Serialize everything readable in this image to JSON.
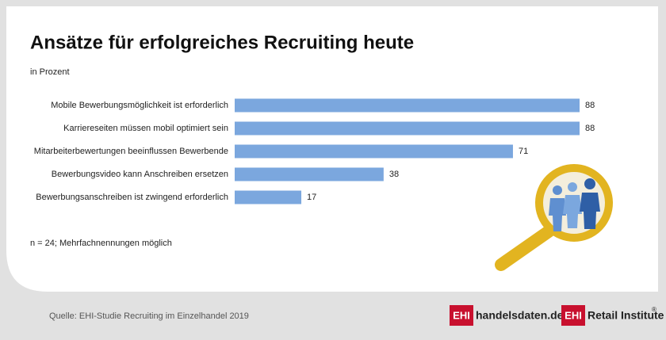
{
  "chart_data": {
    "type": "bar",
    "orientation": "horizontal",
    "title": "Ansätze für erfolgreiches Recruiting heute",
    "subtitle": "in Prozent",
    "categories": [
      "Mobile Bewerbungsmöglichkeit ist erforderlich",
      "Karriereseiten müssen mobil optimiert sein",
      "Mitarbeiterbewertungen beeinflussen Bewerbende",
      "Bewerbungsvideo kann Anschreiben ersetzen",
      "Bewerbungsanschreiben ist zwingend erforderlich"
    ],
    "values": [
      88,
      88,
      71,
      38,
      17
    ],
    "color": "#7ba7de",
    "note": "n = 24; Mehrfachnennungen möglich"
  },
  "footer": {
    "source": "Quelle: EHI-Studie Recruiting im Einzelhandel 2019",
    "logo_1": {
      "badge": "EHI",
      "text": "handelsdaten.de"
    },
    "logo_2": {
      "badge": "EHI",
      "text": "Retail Institute",
      "mark": "®"
    }
  }
}
